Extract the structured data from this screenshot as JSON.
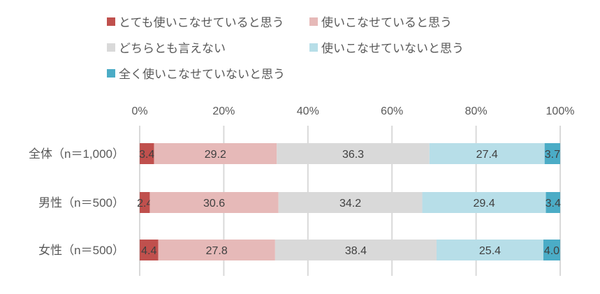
{
  "chart_data": {
    "type": "bar",
    "orientation": "horizontal",
    "stacked": true,
    "percent": true,
    "categories": [
      "全体（n＝1,000）",
      "男性（n＝500）",
      "女性（n＝500）"
    ],
    "series": [
      {
        "name": "とても使いこなせていると思う",
        "color": "#c0504d",
        "values": [
          3.4,
          2.4,
          4.4
        ]
      },
      {
        "name": "使いこなせていると思う",
        "color": "#e6b9b8",
        "values": [
          29.2,
          30.6,
          27.8
        ]
      },
      {
        "name": "どちらとも言えない",
        "color": "#d9d9d9",
        "values": [
          36.3,
          34.2,
          38.4
        ]
      },
      {
        "name": "使いこなせていないと思う",
        "color": "#b7dee8",
        "values": [
          27.4,
          29.4,
          25.4
        ]
      },
      {
        "name": "全く使いこなせていないと思う",
        "color": "#4bacc6",
        "values": [
          3.7,
          3.4,
          4.0
        ]
      }
    ],
    "xlim": [
      0,
      100
    ],
    "xticks": [
      "0%",
      "20%",
      "40%",
      "60%",
      "80%",
      "100%"
    ],
    "xtick_position": "top",
    "grid": true,
    "legend": "top",
    "data_labels": true
  }
}
